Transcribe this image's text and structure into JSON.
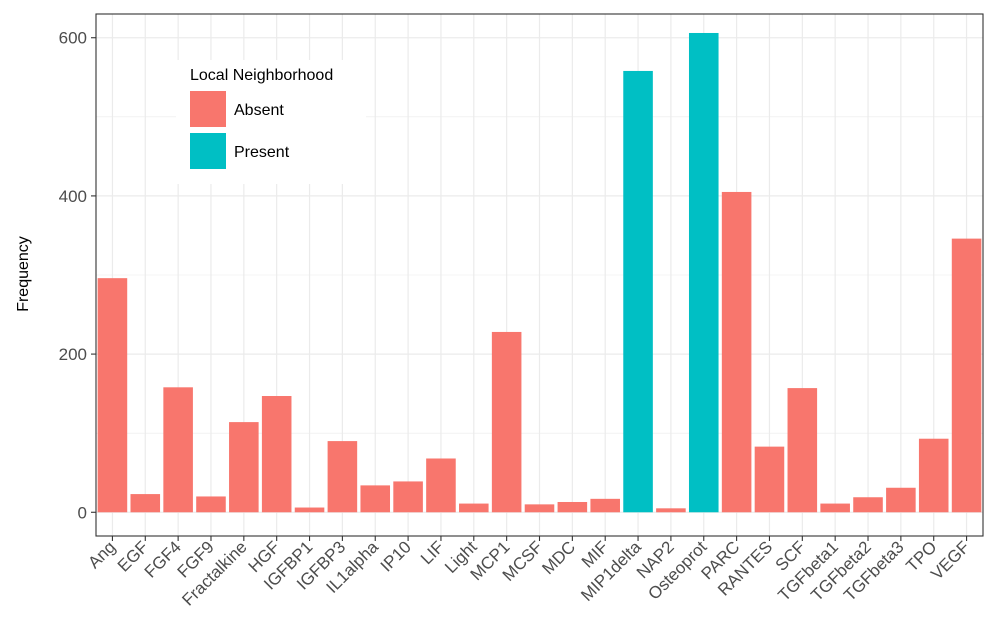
{
  "chart_data": {
    "type": "bar",
    "ylabel": "Frequency",
    "xlabel": "",
    "ylim": [
      -30,
      630
    ],
    "yticks": [
      0,
      200,
      400,
      600
    ],
    "grid": true,
    "legend": {
      "title": "Local Neighborhood",
      "position": "top-left",
      "entries": [
        {
          "name": "Absent",
          "color": "#F8766D"
        },
        {
          "name": "Present",
          "color": "#00BFC4"
        }
      ]
    },
    "categories": [
      "Ang",
      "EGF",
      "FGF4",
      "FGF9",
      "Fractalkine",
      "HGF",
      "IGFBP1",
      "IGFBP3",
      "IL1alpha",
      "IP10",
      "LIF",
      "Light",
      "MCP1",
      "MCSF",
      "MDC",
      "MIF",
      "MIP1delta",
      "NAP2",
      "Osteoprot",
      "PARC",
      "RANTES",
      "SCF",
      "TGFbeta1",
      "TGFbeta2",
      "TGFbeta3",
      "TPO",
      "VEGF"
    ],
    "values": [
      296,
      23,
      158,
      20,
      114,
      147,
      6,
      90,
      34,
      39,
      68,
      11,
      228,
      10,
      13,
      17,
      558,
      5,
      606,
      405,
      83,
      157,
      11,
      19,
      31,
      93,
      346
    ],
    "groups": [
      "Absent",
      "Absent",
      "Absent",
      "Absent",
      "Absent",
      "Absent",
      "Absent",
      "Absent",
      "Absent",
      "Absent",
      "Absent",
      "Absent",
      "Absent",
      "Absent",
      "Absent",
      "Absent",
      "Present",
      "Absent",
      "Present",
      "Absent",
      "Absent",
      "Absent",
      "Absent",
      "Absent",
      "Absent",
      "Absent",
      "Absent"
    ]
  }
}
